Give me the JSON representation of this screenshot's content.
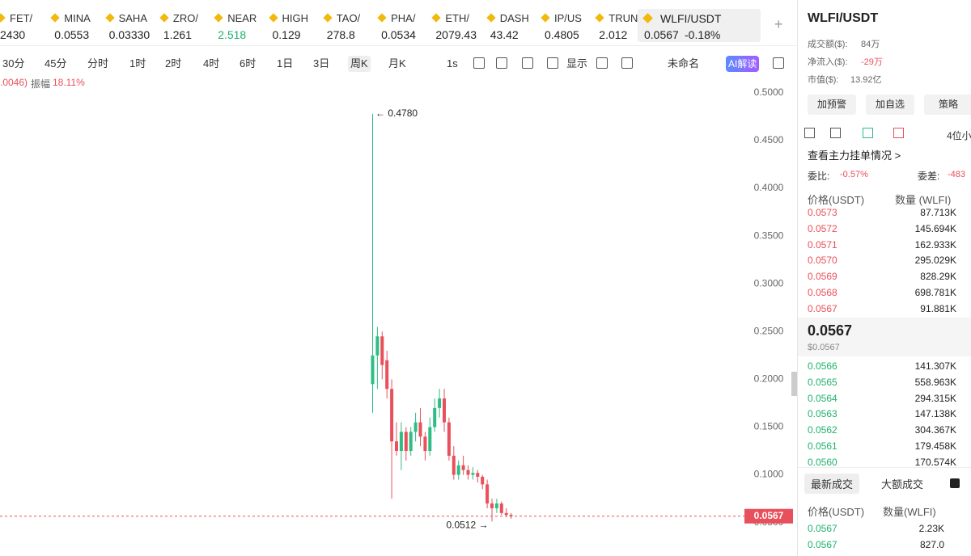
{
  "tickers": [
    {
      "name": "FET/",
      "price": "2430"
    },
    {
      "name": "MINA",
      "price": "0.0553"
    },
    {
      "name": "SAHA",
      "price": "0.03330"
    },
    {
      "name": "ZRO/",
      "price": "1.261"
    },
    {
      "name": "NEAR",
      "price": "2.518",
      "color": "#20b26c"
    },
    {
      "name": "HIGH",
      "price": "0.129"
    },
    {
      "name": "TAO/",
      "price": "278.8"
    },
    {
      "name": "PHA/",
      "price": "0.0534"
    },
    {
      "name": "ETH/",
      "price": "2079.43"
    },
    {
      "name": "DASH",
      "price": "43.42"
    },
    {
      "name": "IP/US",
      "price": "0.4805"
    },
    {
      "name": "TRUN",
      "price": "2.012"
    }
  ],
  "active_ticker": {
    "name": "WLFI/USDT",
    "price": "0.0567",
    "change": "-0.18%"
  },
  "toolbar": [
    "30分",
    "45分",
    "分时",
    "1时",
    "2时",
    "4时",
    "6时",
    "1日",
    "3日",
    "周K",
    "月K",
    "1s",
    "显示",
    "未命名",
    "AI解读"
  ],
  "info": {
    "change": ".0046)",
    "amplitude_label": "振幅",
    "amplitude": "18.11%"
  },
  "chart_data": {
    "type": "candlestick",
    "up_color": "#2ebd85",
    "down_color": "#e8505b",
    "ylim": [
      0.015,
      0.505
    ],
    "yticks": [
      {
        "value": 0.5,
        "label": "0.5000"
      },
      {
        "value": 0.45,
        "label": "0.4500"
      },
      {
        "value": 0.4,
        "label": "0.4000"
      },
      {
        "value": 0.35,
        "label": "0.3500"
      },
      {
        "value": 0.3,
        "label": "0.3000"
      },
      {
        "value": 0.25,
        "label": "0.2500"
      },
      {
        "value": 0.2,
        "label": "0.2000"
      },
      {
        "value": 0.15,
        "label": "0.1500"
      },
      {
        "value": 0.1,
        "label": "0.1000"
      },
      {
        "value": 0.05,
        "label": "0.0500"
      }
    ],
    "candles": [
      {
        "open": 0.195,
        "high": 0.478,
        "low": 0.165,
        "close": 0.225
      },
      {
        "open": 0.225,
        "high": 0.255,
        "low": 0.19,
        "close": 0.245
      },
      {
        "open": 0.245,
        "high": 0.25,
        "low": 0.2,
        "close": 0.215
      },
      {
        "open": 0.22,
        "high": 0.23,
        "low": 0.18,
        "close": 0.19
      },
      {
        "open": 0.19,
        "high": 0.2,
        "low": 0.075,
        "close": 0.135
      },
      {
        "open": 0.135,
        "high": 0.155,
        "low": 0.12,
        "close": 0.125
      },
      {
        "open": 0.125,
        "high": 0.155,
        "low": 0.105,
        "close": 0.145
      },
      {
        "open": 0.145,
        "high": 0.15,
        "low": 0.115,
        "close": 0.125
      },
      {
        "open": 0.125,
        "high": 0.15,
        "low": 0.12,
        "close": 0.145
      },
      {
        "open": 0.145,
        "high": 0.165,
        "low": 0.135,
        "close": 0.155
      },
      {
        "open": 0.155,
        "high": 0.17,
        "low": 0.13,
        "close": 0.14
      },
      {
        "open": 0.14,
        "high": 0.145,
        "low": 0.115,
        "close": 0.125
      },
      {
        "open": 0.125,
        "high": 0.16,
        "low": 0.12,
        "close": 0.15
      },
      {
        "open": 0.15,
        "high": 0.18,
        "low": 0.145,
        "close": 0.17
      },
      {
        "open": 0.17,
        "high": 0.19,
        "low": 0.16,
        "close": 0.18
      },
      {
        "open": 0.18,
        "high": 0.19,
        "low": 0.145,
        "close": 0.155
      },
      {
        "open": 0.155,
        "high": 0.16,
        "low": 0.115,
        "close": 0.12
      },
      {
        "open": 0.12,
        "high": 0.13,
        "low": 0.095,
        "close": 0.1
      },
      {
        "open": 0.1,
        "high": 0.115,
        "low": 0.095,
        "close": 0.11
      },
      {
        "open": 0.11,
        "high": 0.12,
        "low": 0.1,
        "close": 0.105
      },
      {
        "open": 0.105,
        "high": 0.11,
        "low": 0.095,
        "close": 0.1
      },
      {
        "open": 0.1,
        "high": 0.108,
        "low": 0.095,
        "close": 0.102
      },
      {
        "open": 0.102,
        "high": 0.105,
        "low": 0.092,
        "close": 0.098
      },
      {
        "open": 0.098,
        "high": 0.1,
        "low": 0.085,
        "close": 0.09
      },
      {
        "open": 0.09,
        "high": 0.095,
        "low": 0.065,
        "close": 0.07
      },
      {
        "open": 0.07,
        "high": 0.075,
        "low": 0.0512,
        "close": 0.065
      },
      {
        "open": 0.065,
        "high": 0.075,
        "low": 0.06,
        "close": 0.07
      },
      {
        "open": 0.07,
        "high": 0.072,
        "low": 0.058,
        "close": 0.06
      },
      {
        "open": 0.06,
        "high": 0.065,
        "low": 0.056,
        "close": 0.058
      },
      {
        "open": 0.058,
        "high": 0.06,
        "low": 0.054,
        "close": 0.0567
      }
    ],
    "last_price": 0.0567,
    "high_label": "← 0.4780",
    "low_label": "0.0512 →"
  },
  "panel": {
    "title": "WLFI/USDT",
    "stats": [
      {
        "label": "成交额($):",
        "value": "84万"
      },
      {
        "label": "净流入($):",
        "value": "-29万",
        "color": "#e8505b"
      },
      {
        "label": "市值($):",
        "value": "13.92亿"
      }
    ],
    "buttons": [
      "加预警",
      "加自选",
      "策略"
    ],
    "precision": "4位小",
    "depth_link": "查看主力挂单情况 >",
    "ratio_label": "委比:",
    "ratio": "-0.57%",
    "diff_label": "委差:",
    "diff": "-483",
    "book_headers": [
      "价格(USDT)",
      "数量 (WLFI)"
    ],
    "asks": [
      {
        "price": "0.0573",
        "amount": "87.713K"
      },
      {
        "price": "0.0572",
        "amount": "145.694K"
      },
      {
        "price": "0.0571",
        "amount": "162.933K"
      },
      {
        "price": "0.0570",
        "amount": "295.029K"
      },
      {
        "price": "0.0569",
        "amount": "828.29K"
      },
      {
        "price": "0.0568",
        "amount": "698.781K"
      },
      {
        "price": "0.0567",
        "amount": "91.881K"
      }
    ],
    "mid_price": "0.0567",
    "mid_usd": "$0.0567",
    "bids": [
      {
        "price": "0.0566",
        "amount": "141.307K"
      },
      {
        "price": "0.0565",
        "amount": "558.963K"
      },
      {
        "price": "0.0564",
        "amount": "294.315K"
      },
      {
        "price": "0.0563",
        "amount": "147.138K"
      },
      {
        "price": "0.0562",
        "amount": "304.367K"
      },
      {
        "price": "0.0561",
        "amount": "179.458K"
      },
      {
        "price": "0.0560",
        "amount": "170.574K"
      }
    ],
    "tabs": [
      "最新成交",
      "大额成交"
    ],
    "trade_headers": [
      "价格(USDT)",
      "数量(WLFI)"
    ],
    "trades": [
      {
        "price": "0.0567",
        "amount": "2.23K"
      },
      {
        "price": "0.0567",
        "amount": "827.0"
      }
    ]
  }
}
